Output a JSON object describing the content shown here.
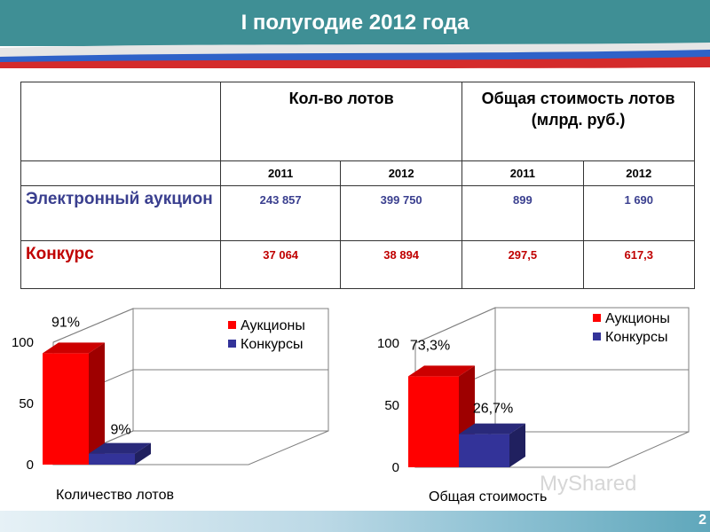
{
  "title": "I полугодие 2012 года",
  "page_number": "2",
  "watermark": "MyShared",
  "table": {
    "header_lots": "Кол-во лотов",
    "header_cost": "Общая стоимость лотов (млрд. руб.)",
    "years": [
      "2011",
      "2012",
      "2011",
      "2012"
    ],
    "rows": [
      {
        "label": "Электронный аукцион",
        "values": [
          "243 857",
          "399 750",
          "899",
          "1 690"
        ]
      },
      {
        "label": "Конкурс",
        "values": [
          "37 064",
          "38 894",
          "297,5",
          "617,3"
        ]
      }
    ]
  },
  "colors": {
    "header_bg": "#3f8f95",
    "auction": "#ff0000",
    "contest": "#333399",
    "auction_text": "#3a3f8f",
    "contest_text": "#c00000"
  },
  "chart_data": [
    {
      "type": "bar",
      "categories": [
        "Количество лотов"
      ],
      "series": [
        {
          "name": "Аукционы",
          "values": [
            91
          ],
          "label": "91%"
        },
        {
          "name": "Конкурсы",
          "values": [
            9
          ],
          "label": "9%"
        }
      ],
      "yticks": [
        "0",
        "50",
        "100"
      ],
      "ylim": [
        0,
        100
      ],
      "xlabel": "Количество лотов",
      "legend": "top-right",
      "style": "3d"
    },
    {
      "type": "bar",
      "categories": [
        "Общая стоимость"
      ],
      "series": [
        {
          "name": "Аукционы",
          "values": [
            73.3
          ],
          "label": "73,3%"
        },
        {
          "name": "Конкурсы",
          "values": [
            26.7
          ],
          "label": "26,7%"
        }
      ],
      "yticks": [
        "0",
        "50",
        "100"
      ],
      "ylim": [
        0,
        100
      ],
      "xlabel": "Общая стоимость",
      "legend": "top-right",
      "style": "3d"
    }
  ]
}
